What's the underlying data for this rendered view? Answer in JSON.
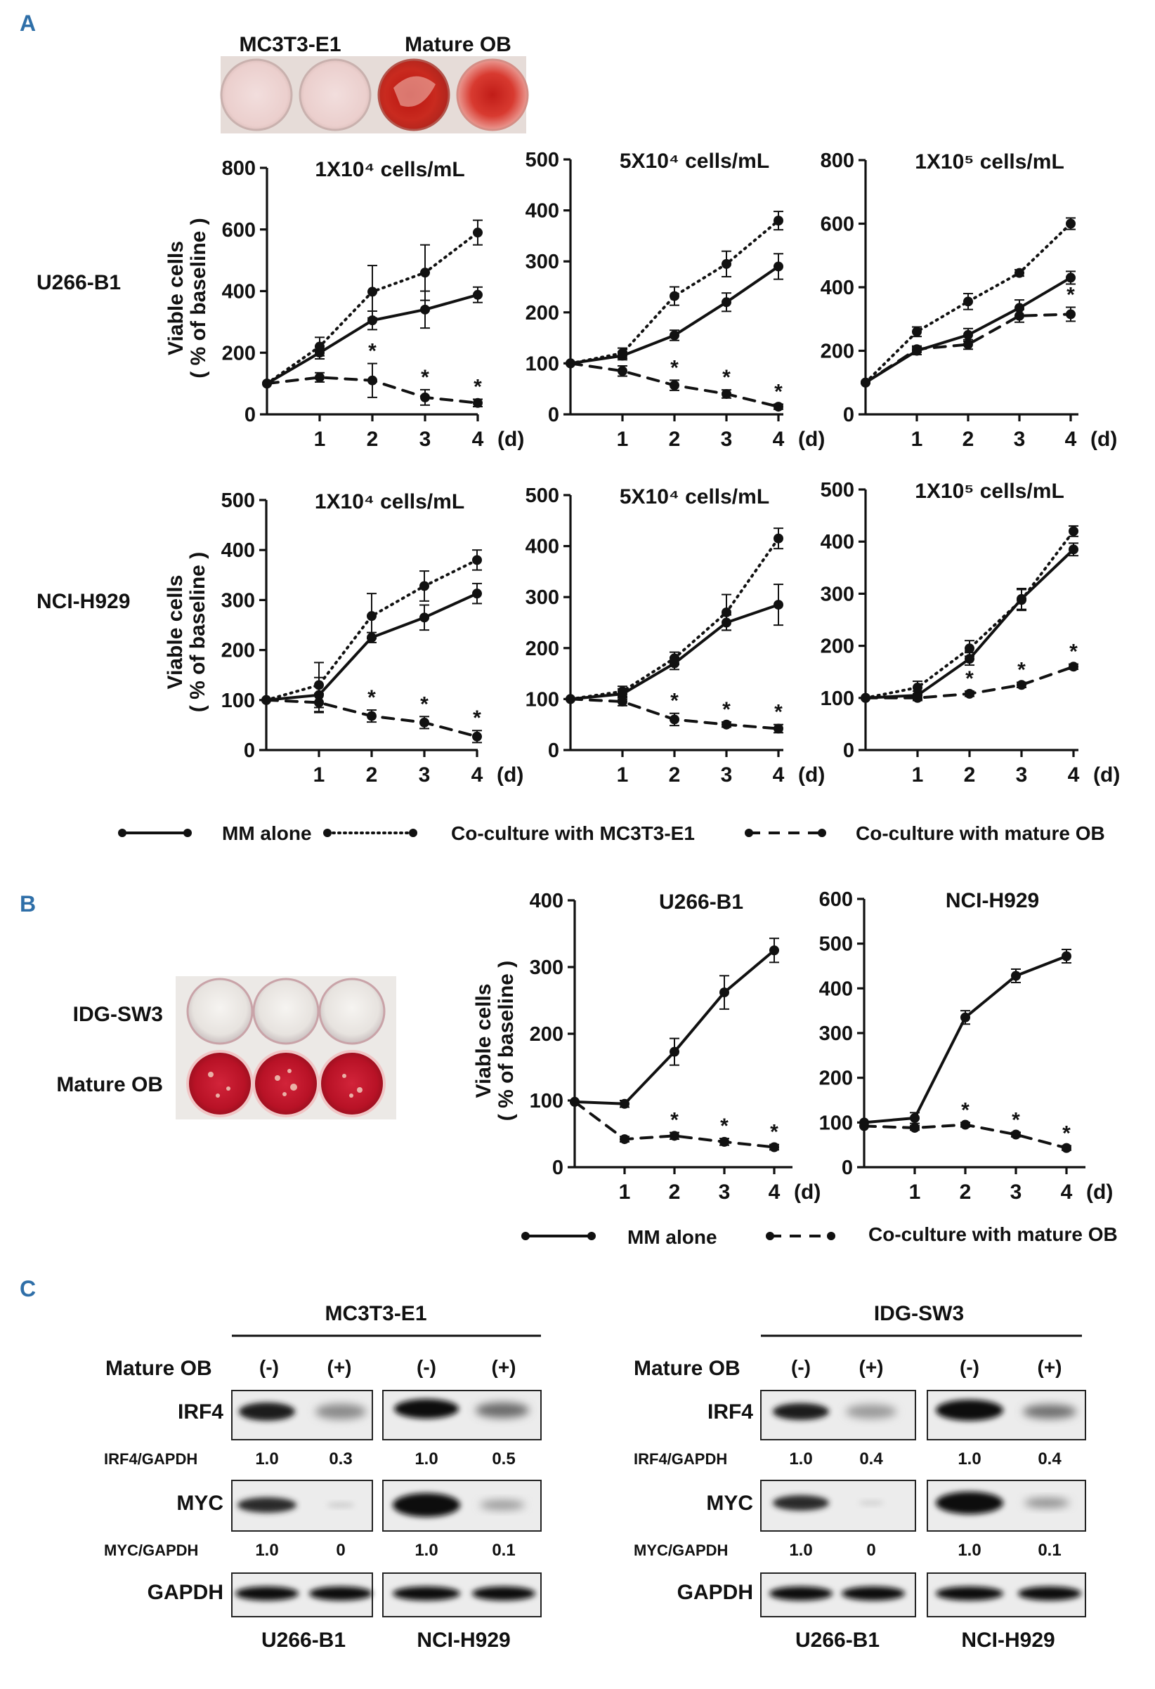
{
  "panels": {
    "a": "A",
    "b": "B",
    "c": "C"
  },
  "panel_a": {
    "top_image": {
      "label_left": "MC3T3-E1",
      "label_right": "Mature OB"
    },
    "row_labels": [
      "U266-B1",
      "NCI-H929"
    ],
    "legend": {
      "mm_alone": "MM alone",
      "mc3t3": "Co-culture with MC3T3-E1",
      "mature_ob": "Co-culture with mature OB"
    }
  },
  "panel_b": {
    "image_labels": [
      "IDG-SW3",
      "Mature OB"
    ],
    "legend": {
      "mm_alone": "MM alone",
      "mature_ob": "Co-culture with mature OB"
    }
  },
  "panel_c": {
    "header_label": "Mature OB",
    "left": {
      "cell_line": "MC3T3-E1",
      "signs": [
        "(-)",
        "(+)",
        "(-)",
        "(+)"
      ],
      "irf4_label": "IRF4",
      "irf4_ratio_label": "IRF4/GAPDH",
      "irf4_values": [
        "1.0",
        "0.3",
        "1.0",
        "0.5"
      ],
      "myc_label": "MYC",
      "myc_ratio_label": "MYC/GAPDH",
      "myc_values": [
        "1.0",
        "0",
        "1.0",
        "0.1"
      ],
      "gapdh_label": "GAPDH",
      "bottom_labels": [
        "U266-B1",
        "NCI-H929"
      ]
    },
    "right": {
      "cell_line": "IDG-SW3",
      "signs": [
        "(-)",
        "(+)",
        "(-)",
        "(+)"
      ],
      "irf4_label": "IRF4",
      "irf4_ratio_label": "IRF4/GAPDH",
      "irf4_values": [
        "1.0",
        "0.4",
        "1.0",
        "0.4"
      ],
      "myc_label": "MYC",
      "myc_ratio_label": "MYC/GAPDH",
      "myc_values": [
        "1.0",
        "0",
        "1.0",
        "0.1"
      ],
      "gapdh_label": "GAPDH",
      "bottom_labels": [
        "U266-B1",
        "NCI-H929"
      ]
    }
  },
  "chart_data": [
    {
      "id": "a1",
      "type": "line",
      "title": "1X10⁴ cells/mL",
      "ylabel": "Viable cells",
      "ylabel2": "( % of baseline )",
      "xunit": "(d)",
      "x": [
        0,
        1,
        2,
        3,
        4
      ],
      "xticks": [
        1,
        2,
        3,
        4
      ],
      "ylim": [
        0,
        800
      ],
      "yticks": [
        0,
        200,
        400,
        600,
        800
      ],
      "series": [
        {
          "name": "MM alone",
          "style": "solid",
          "values": [
            100,
            200,
            305,
            340,
            388
          ],
          "err": [
            0,
            20,
            30,
            60,
            25
          ]
        },
        {
          "name": "Co-culture with MC3T3-E1",
          "style": "dotted",
          "values": [
            100,
            220,
            398,
            460,
            590
          ],
          "err": [
            0,
            30,
            85,
            90,
            40
          ]
        },
        {
          "name": "Co-culture with mature OB",
          "style": "dashed",
          "values": [
            100,
            120,
            110,
            55,
            37
          ],
          "err": [
            0,
            15,
            55,
            25,
            12
          ],
          "sig": [
            2,
            3,
            4
          ]
        }
      ]
    },
    {
      "id": "a2",
      "type": "line",
      "title": "5X10⁴ cells/mL",
      "xunit": "(d)",
      "x": [
        0,
        1,
        2,
        3,
        4
      ],
      "xticks": [
        1,
        2,
        3,
        4
      ],
      "ylim": [
        0,
        500
      ],
      "yticks": [
        0,
        100,
        200,
        300,
        400,
        500
      ],
      "series": [
        {
          "name": "MM alone",
          "style": "solid",
          "values": [
            100,
            115,
            155,
            220,
            290
          ],
          "err": [
            0,
            8,
            10,
            18,
            25
          ]
        },
        {
          "name": "Co-culture with MC3T3-E1",
          "style": "dotted",
          "values": [
            100,
            120,
            232,
            295,
            380
          ],
          "err": [
            0,
            10,
            18,
            25,
            18
          ]
        },
        {
          "name": "Co-culture with mature OB",
          "style": "dashed",
          "values": [
            100,
            85,
            57,
            40,
            15
          ],
          "err": [
            0,
            10,
            10,
            8,
            5
          ],
          "sig": [
            2,
            3,
            4
          ]
        }
      ]
    },
    {
      "id": "a3",
      "type": "line",
      "title": "1X10⁵ cells/mL",
      "xunit": "(d)",
      "x": [
        0,
        1,
        2,
        3,
        4
      ],
      "xticks": [
        1,
        2,
        3,
        4
      ],
      "ylim": [
        0,
        800
      ],
      "yticks": [
        0,
        200,
        400,
        600,
        800
      ],
      "series": [
        {
          "name": "MM alone",
          "style": "solid",
          "values": [
            100,
            200,
            250,
            335,
            430
          ],
          "err": [
            0,
            12,
            20,
            25,
            20
          ]
        },
        {
          "name": "Co-culture with MC3T3-E1",
          "style": "dotted",
          "values": [
            100,
            260,
            355,
            445,
            600
          ],
          "err": [
            0,
            15,
            25,
            10,
            18
          ]
        },
        {
          "name": "Co-culture with mature OB",
          "style": "dashed",
          "values": [
            100,
            205,
            220,
            310,
            315
          ],
          "err": [
            0,
            10,
            15,
            20,
            22
          ],
          "sig": [
            4
          ]
        }
      ]
    },
    {
      "id": "a4",
      "type": "line",
      "title": "1X10⁴ cells/mL",
      "ylabel": "Viable cells",
      "ylabel2": "( % of baseline )",
      "xunit": "(d)",
      "x": [
        0,
        1,
        2,
        3,
        4
      ],
      "xticks": [
        1,
        2,
        3,
        4
      ],
      "ylim": [
        0,
        500
      ],
      "yticks": [
        0,
        100,
        200,
        300,
        400,
        500
      ],
      "series": [
        {
          "name": "MM alone",
          "style": "solid",
          "values": [
            100,
            110,
            225,
            265,
            313
          ],
          "err": [
            0,
            35,
            10,
            25,
            20
          ]
        },
        {
          "name": "Co-culture with MC3T3-E1",
          "style": "dotted",
          "values": [
            100,
            130,
            268,
            328,
            380
          ],
          "err": [
            0,
            45,
            45,
            30,
            20
          ]
        },
        {
          "name": "Co-culture with mature OB",
          "style": "dashed",
          "values": [
            100,
            95,
            68,
            55,
            27
          ],
          "err": [
            0,
            18,
            12,
            12,
            12
          ],
          "sig": [
            2,
            3,
            4
          ]
        }
      ]
    },
    {
      "id": "a5",
      "type": "line",
      "title": "5X10⁴ cells/mL",
      "xunit": "(d)",
      "x": [
        0,
        1,
        2,
        3,
        4
      ],
      "xticks": [
        1,
        2,
        3,
        4
      ],
      "ylim": [
        0,
        500
      ],
      "yticks": [
        0,
        100,
        200,
        300,
        400,
        500
      ],
      "series": [
        {
          "name": "MM alone",
          "style": "solid",
          "values": [
            100,
            110,
            170,
            250,
            285
          ],
          "err": [
            0,
            10,
            12,
            15,
            40
          ]
        },
        {
          "name": "Co-culture with MC3T3-E1",
          "style": "dotted",
          "values": [
            100,
            115,
            180,
            270,
            415
          ],
          "err": [
            0,
            10,
            12,
            35,
            20
          ]
        },
        {
          "name": "Co-culture with mature OB",
          "style": "dashed",
          "values": [
            100,
            95,
            60,
            50,
            42
          ],
          "err": [
            0,
            8,
            12,
            5,
            8
          ],
          "sig": [
            2,
            3,
            4
          ]
        }
      ]
    },
    {
      "id": "a6",
      "type": "line",
      "title": "1X10⁵ cells/mL",
      "xunit": "(d)",
      "x": [
        0,
        1,
        2,
        3,
        4
      ],
      "xticks": [
        1,
        2,
        3,
        4
      ],
      "ylim": [
        0,
        500
      ],
      "yticks": [
        0,
        100,
        200,
        300,
        400,
        500
      ],
      "series": [
        {
          "name": "MM alone",
          "style": "solid",
          "values": [
            100,
            105,
            175,
            290,
            385
          ],
          "err": [
            0,
            8,
            12,
            20,
            12
          ]
        },
        {
          "name": "Co-culture with MC3T3-E1",
          "style": "dotted",
          "values": [
            100,
            120,
            195,
            288,
            420
          ],
          "err": [
            0,
            12,
            15,
            20,
            10
          ]
        },
        {
          "name": "Co-culture with mature OB",
          "style": "dashed",
          "values": [
            100,
            100,
            108,
            125,
            160
          ],
          "err": [
            0,
            5,
            5,
            5,
            5
          ],
          "sig": [
            2,
            3,
            4
          ]
        }
      ]
    },
    {
      "id": "b1",
      "type": "line",
      "title": "U266-B1",
      "ylabel": "Viable cells",
      "ylabel2": "( % of baseline )",
      "xunit": "(d)",
      "x": [
        0,
        1,
        2,
        3,
        4
      ],
      "xticks": [
        1,
        2,
        3,
        4
      ],
      "ylim": [
        0,
        400
      ],
      "yticks": [
        0,
        100,
        200,
        300,
        400
      ],
      "series": [
        {
          "name": "MM alone",
          "style": "solid",
          "values": [
            98,
            95,
            173,
            262,
            325
          ],
          "err": [
            0,
            5,
            20,
            25,
            18
          ]
        },
        {
          "name": "Co-culture with mature OB",
          "style": "dashed",
          "values": [
            98,
            42,
            47,
            38,
            30
          ],
          "err": [
            0,
            4,
            5,
            5,
            4
          ],
          "sig": [
            2,
            3,
            4
          ]
        }
      ]
    },
    {
      "id": "b2",
      "type": "line",
      "title": "NCI-H929",
      "xunit": "(d)",
      "x": [
        0,
        1,
        2,
        3,
        4
      ],
      "xticks": [
        1,
        2,
        3,
        4
      ],
      "ylim": [
        0,
        600
      ],
      "yticks": [
        0,
        100,
        200,
        300,
        400,
        500,
        600
      ],
      "series": [
        {
          "name": "MM alone",
          "style": "solid",
          "values": [
            100,
            110,
            335,
            428,
            472
          ],
          "err": [
            0,
            12,
            15,
            15,
            15
          ]
        },
        {
          "name": "Co-culture with mature OB",
          "style": "dashed",
          "values": [
            92,
            88,
            95,
            73,
            43
          ],
          "err": [
            0,
            5,
            5,
            5,
            5
          ],
          "sig": [
            2,
            3,
            4
          ]
        }
      ]
    }
  ]
}
